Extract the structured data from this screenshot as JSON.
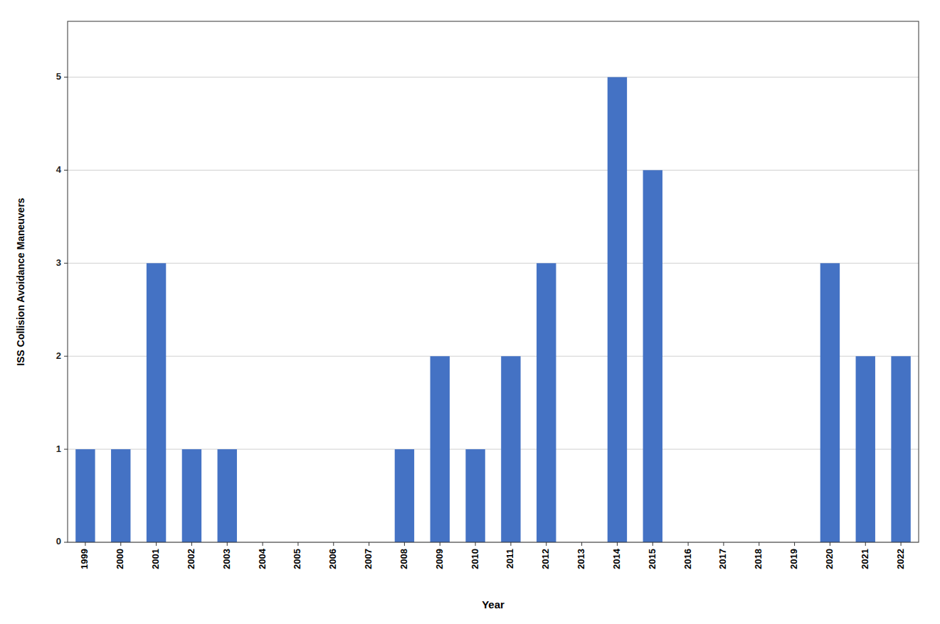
{
  "chart_data": {
    "type": "bar",
    "categories": [
      "1999",
      "2000",
      "2001",
      "2002",
      "2003",
      "2004",
      "2005",
      "2006",
      "2007",
      "2008",
      "2009",
      "2010",
      "2011",
      "2012",
      "2013",
      "2014",
      "2015",
      "2016",
      "2017",
      "2018",
      "2019",
      "2020",
      "2021",
      "2022"
    ],
    "values": [
      1,
      1,
      3,
      1,
      1,
      0,
      0,
      0,
      0,
      1,
      2,
      1,
      2,
      3,
      0,
      5,
      4,
      0,
      0,
      0,
      0,
      3,
      2,
      2
    ],
    "color": "#4472C4",
    "xlabel": "Year",
    "ylabel": "ISS Collision Avoidance Maneuvers",
    "ylim": [
      0,
      5.6
    ],
    "yticks": [
      0,
      1,
      2,
      3,
      4,
      5
    ],
    "grid": true
  }
}
